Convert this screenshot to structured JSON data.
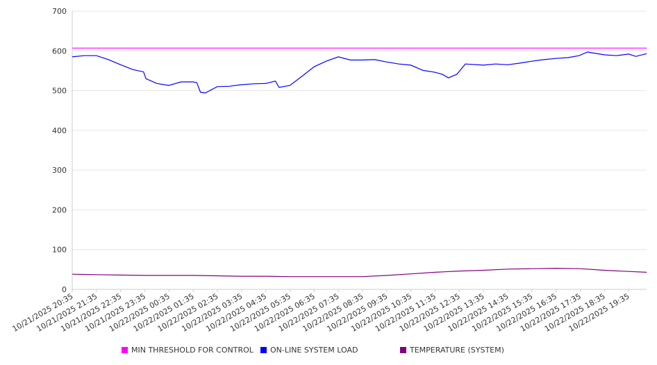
{
  "chart_data": {
    "type": "line",
    "title": "",
    "xlabel": "",
    "ylabel": "",
    "ylim": [
      0,
      700
    ],
    "yticks": [
      0,
      100,
      200,
      300,
      400,
      500,
      600,
      700
    ],
    "grid": true,
    "legend_position": "bottom",
    "x_hours_span": 23.75,
    "xtick_labels": [
      "10/21/2025 20:35",
      "10/21/2025 21:35",
      "10/21/2025 22:35",
      "10/21/2025 23:35",
      "10/22/2025 00:35",
      "10/22/2025 01:35",
      "10/22/2025 02:35",
      "10/22/2025 03:35",
      "10/22/2025 04:35",
      "10/22/2025 05:35",
      "10/22/2025 06:35",
      "10/22/2025 07:35",
      "10/22/2025 08:35",
      "10/22/2025 09:35",
      "10/22/2025 10:35",
      "10/22/2025 11:35",
      "10/22/2025 12:35",
      "10/22/2025 13:35",
      "10/22/2025 14:35",
      "10/22/2025 15:35",
      "10/22/2025 16:35",
      "10/22/2025 17:35",
      "10/22/2025 18:35",
      "10/22/2025 19:35"
    ],
    "series": [
      {
        "name": "MIN THRESHOLD FOR CONTROL",
        "color": "#ff00ff",
        "x": [
          0,
          23.75
        ],
        "values": [
          607,
          607
        ]
      },
      {
        "name": "ON-LINE SYSTEM LOAD",
        "color": "#0000ff",
        "x": [
          0,
          0.5,
          1,
          1.5,
          2,
          2.5,
          2.95,
          3.05,
          3.5,
          4,
          4.5,
          5,
          5.15,
          5.3,
          5.5,
          6,
          6.5,
          7,
          7.5,
          8,
          8.4,
          8.55,
          9,
          9.5,
          10,
          10.5,
          11,
          11.5,
          12,
          12.5,
          13,
          13.5,
          14,
          14.5,
          15,
          15.3,
          15.55,
          15.9,
          16.25,
          17,
          17.5,
          18,
          18.5,
          19,
          19.5,
          20,
          20.5,
          20.95,
          21.3,
          22,
          22.5,
          23,
          23.3,
          23.75
        ],
        "values": [
          585,
          588,
          588,
          578,
          565,
          553,
          547,
          530,
          518,
          513,
          522,
          522,
          520,
          496,
          494,
          510,
          511,
          515,
          517,
          518,
          524,
          508,
          513,
          536,
          560,
          574,
          585,
          577,
          577,
          578,
          572,
          567,
          564,
          551,
          546,
          541,
          532,
          541,
          567,
          564,
          567,
          565,
          569,
          574,
          578,
          581,
          583,
          588,
          597,
          590,
          588,
          592,
          586,
          593
        ]
      },
      {
        "name": "TEMPERATURE (SYSTEM)",
        "color": "#800080",
        "x": [
          0,
          1,
          2,
          3,
          4,
          5,
          6,
          7,
          8,
          9,
          10,
          11,
          12,
          13,
          14,
          15,
          16,
          17,
          18,
          19,
          20,
          21,
          22,
          23,
          23.75
        ],
        "values": [
          38,
          37,
          36,
          35,
          35,
          35,
          34,
          33,
          33,
          32,
          32,
          32,
          32,
          35,
          39,
          43,
          46,
          48,
          51,
          52,
          53,
          52,
          48,
          45,
          43
        ]
      }
    ]
  }
}
